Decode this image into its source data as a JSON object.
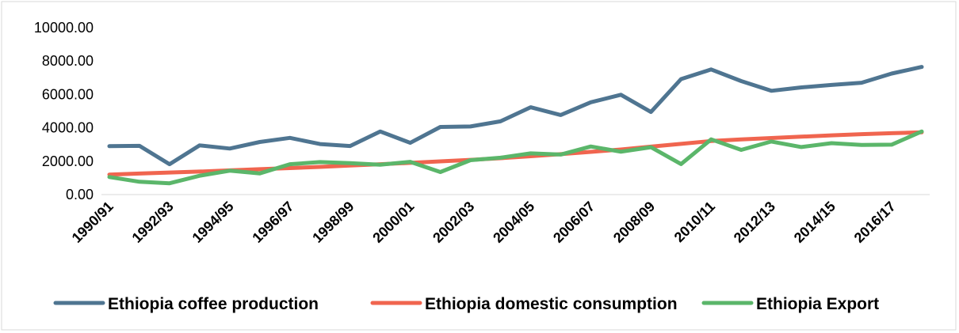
{
  "chart_data": {
    "type": "line",
    "title": "",
    "xlabel": "",
    "ylabel": "",
    "ylim": [
      0,
      10000
    ],
    "y_ticks": [
      "0.00",
      "2000.00",
      "4000.00",
      "6000.00",
      "8000.00",
      "10000.00"
    ],
    "y_tick_values": [
      0,
      2000,
      4000,
      6000,
      8000,
      10000
    ],
    "grid": false,
    "legend_position": "bottom",
    "categories": [
      "1990/91",
      "1991/92",
      "1992/93",
      "1993/94",
      "1994/95",
      "1995/96",
      "1996/97",
      "1997/98",
      "1998/99",
      "1999/00",
      "2000/01",
      "2001/02",
      "2002/03",
      "2003/04",
      "2004/05",
      "2005/06",
      "2006/07",
      "2007/08",
      "2008/09",
      "2009/10",
      "2010/11",
      "2011/12",
      "2012/13",
      "2013/14",
      "2014/15",
      "2015/16",
      "2016/17",
      "2017/18"
    ],
    "x_tick_labels": [
      "1990/91",
      "1992/93",
      "1994/95",
      "1996/97",
      "1998/99",
      "2000/01",
      "2002/03",
      "2004/05",
      "2006/07",
      "2008/09",
      "2010/11",
      "2012/13",
      "2014/15",
      "2016/17"
    ],
    "series": [
      {
        "name": "Ethiopia coffee production",
        "color": "#4f7591",
        "values": [
          2900,
          2920,
          1820,
          2950,
          2760,
          3150,
          3400,
          3030,
          2910,
          3780,
          3100,
          4050,
          4080,
          4390,
          5230,
          4770,
          5530,
          5980,
          4950,
          6920,
          7500,
          6800,
          6220,
          6420,
          6570,
          6700,
          7250,
          7650
        ]
      },
      {
        "name": "Ethiopia domestic consumption",
        "color": "#f0654f",
        "values": [
          1200,
          1260,
          1320,
          1380,
          1450,
          1520,
          1590,
          1660,
          1740,
          1820,
          1900,
          1990,
          2080,
          2180,
          2300,
          2420,
          2560,
          2700,
          2870,
          3040,
          3210,
          3310,
          3390,
          3470,
          3550,
          3620,
          3680,
          3730
        ]
      },
      {
        "name": "Ethiopia Export",
        "color": "#5bb66a",
        "values": [
          1050,
          770,
          680,
          1130,
          1430,
          1270,
          1820,
          1950,
          1880,
          1790,
          1960,
          1350,
          2060,
          2210,
          2470,
          2400,
          2880,
          2570,
          2840,
          1830,
          3310,
          2680,
          3180,
          2850,
          3080,
          2970,
          2990,
          3780
        ]
      }
    ]
  }
}
